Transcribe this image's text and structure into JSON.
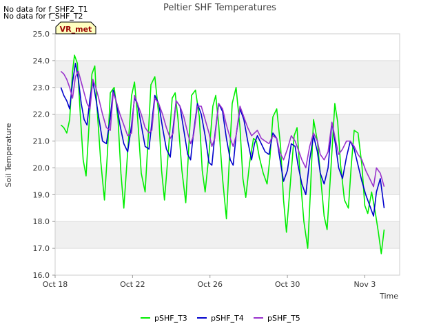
{
  "no_data_messages": [
    "No data for f_SHF2_T1",
    "No data for f_SHF_T2"
  ],
  "badge": {
    "label": "VR_met",
    "fill": "#ffffc0",
    "text_color": "#990000"
  },
  "chart_data": {
    "type": "line",
    "title": "Peltier SHF Temperatures",
    "xlabel": "Time",
    "ylabel": "Soil Temperature",
    "xlim": [
      0,
      17.8
    ],
    "ylim": [
      16.0,
      25.0
    ],
    "yticks": [
      16.0,
      17.0,
      18.0,
      19.0,
      20.0,
      21.0,
      22.0,
      23.0,
      24.0,
      25.0
    ],
    "ytick_labels": [
      "16.0",
      "17.0",
      "18.0",
      "19.0",
      "20.0",
      "21.0",
      "22.0",
      "23.0",
      "24.0",
      "25.0"
    ],
    "xticks": [
      0,
      4,
      8,
      12,
      16
    ],
    "xtick_labels": [
      "Oct 18",
      "Oct 22",
      "Oct 26",
      "Oct 30",
      "Nov 3"
    ],
    "x_unit": "days since Oct 18",
    "grid_bands": true,
    "legend_position": "bottom-center",
    "series": [
      {
        "name": "pSHF_T3",
        "color": "#00ee00",
        "x": [
          0.3,
          0.45,
          0.6,
          0.75,
          0.9,
          1.0,
          1.15,
          1.3,
          1.45,
          1.6,
          1.75,
          1.9,
          2.05,
          2.15,
          2.35,
          2.55,
          2.7,
          2.85,
          3.05,
          3.25,
          3.4,
          3.55,
          3.75,
          3.95,
          4.1,
          4.25,
          4.45,
          4.65,
          4.8,
          4.95,
          5.15,
          5.35,
          5.5,
          5.65,
          5.85,
          6.05,
          6.2,
          6.35,
          6.55,
          6.75,
          6.9,
          7.05,
          7.25,
          7.45,
          7.6,
          7.75,
          7.95,
          8.15,
          8.3,
          8.45,
          8.65,
          8.85,
          9.0,
          9.15,
          9.35,
          9.55,
          9.7,
          9.85,
          10.05,
          10.25,
          10.4,
          10.55,
          10.75,
          10.95,
          11.1,
          11.25,
          11.45,
          11.65,
          11.8,
          11.95,
          12.15,
          12.35,
          12.5,
          12.65,
          12.85,
          13.05,
          13.2,
          13.35,
          13.55,
          13.75,
          13.9,
          14.05,
          14.25,
          14.45,
          14.6,
          14.75,
          14.95,
          15.15,
          15.3,
          15.45,
          15.65,
          15.85,
          16.0,
          16.15,
          16.35,
          16.55,
          16.7,
          16.85,
          17.0
        ],
        "values": [
          21.6,
          21.5,
          21.3,
          21.8,
          23.6,
          24.2,
          23.9,
          22.0,
          20.3,
          19.7,
          21.6,
          23.5,
          23.8,
          22.4,
          20.3,
          18.8,
          20.5,
          22.8,
          23.0,
          21.8,
          19.8,
          18.5,
          20.6,
          22.7,
          23.2,
          22.0,
          19.8,
          19.1,
          21.0,
          23.1,
          23.4,
          22.0,
          19.9,
          18.8,
          20.6,
          22.6,
          22.8,
          21.8,
          19.9,
          18.7,
          20.7,
          22.7,
          22.9,
          21.9,
          19.9,
          19.1,
          20.5,
          22.3,
          22.7,
          21.6,
          19.6,
          18.1,
          20.3,
          22.4,
          23.0,
          21.5,
          19.6,
          18.9,
          20.2,
          21.1,
          21.0,
          20.4,
          19.8,
          19.4,
          20.4,
          21.9,
          22.2,
          20.8,
          18.8,
          17.6,
          19.4,
          21.2,
          21.5,
          19.8,
          18.0,
          17.0,
          19.3,
          21.8,
          21.0,
          19.4,
          18.2,
          17.7,
          20.0,
          22.4,
          21.7,
          20.1,
          18.8,
          18.5,
          20.1,
          21.4,
          21.3,
          20.1,
          18.6,
          18.3,
          19.1,
          18.3,
          17.6,
          16.8,
          17.7
        ]
      },
      {
        "name": "pSHF_T4",
        "color": "#0000cc",
        "x": [
          0.3,
          0.45,
          0.6,
          0.75,
          0.9,
          1.05,
          1.2,
          1.35,
          1.5,
          1.65,
          1.8,
          1.95,
          2.1,
          2.25,
          2.45,
          2.65,
          2.85,
          3.0,
          3.15,
          3.35,
          3.55,
          3.75,
          3.95,
          4.1,
          4.25,
          4.45,
          4.65,
          4.85,
          5.0,
          5.15,
          5.35,
          5.55,
          5.75,
          5.95,
          6.1,
          6.25,
          6.45,
          6.65,
          6.85,
          7.0,
          7.15,
          7.35,
          7.55,
          7.75,
          7.95,
          8.1,
          8.25,
          8.45,
          8.65,
          8.85,
          9.05,
          9.2,
          9.35,
          9.55,
          9.75,
          9.95,
          10.15,
          10.3,
          10.45,
          10.65,
          10.85,
          11.05,
          11.25,
          11.45,
          11.6,
          11.8,
          12.0,
          12.2,
          12.4,
          12.55,
          12.75,
          12.95,
          13.15,
          13.35,
          13.55,
          13.7,
          13.9,
          14.1,
          14.3,
          14.5,
          14.65,
          14.85,
          15.05,
          15.25,
          15.45,
          15.65,
          15.85,
          16.05,
          16.25,
          16.45,
          16.6,
          16.8,
          17.0
        ],
        "values": [
          23.0,
          22.7,
          22.5,
          22.2,
          23.2,
          23.9,
          23.3,
          22.4,
          21.8,
          21.6,
          22.6,
          23.2,
          22.6,
          21.9,
          21.0,
          20.9,
          21.9,
          22.9,
          22.5,
          21.6,
          20.9,
          20.6,
          21.6,
          22.6,
          22.4,
          21.6,
          20.8,
          20.7,
          21.7,
          22.7,
          22.4,
          21.5,
          20.7,
          20.4,
          21.5,
          22.5,
          22.3,
          21.4,
          20.5,
          20.3,
          21.3,
          22.4,
          22.0,
          21.2,
          20.2,
          20.1,
          21.2,
          22.4,
          22.1,
          21.1,
          20.3,
          20.1,
          21.2,
          22.2,
          21.8,
          21.0,
          20.3,
          20.9,
          21.2,
          20.9,
          20.6,
          20.5,
          21.3,
          21.1,
          20.4,
          19.5,
          19.9,
          20.9,
          20.8,
          20.1,
          19.4,
          19.0,
          20.3,
          21.2,
          20.6,
          19.8,
          19.4,
          20.0,
          21.7,
          20.8,
          20.0,
          19.6,
          20.4,
          21.0,
          20.7,
          20.1,
          19.5,
          19.0,
          18.6,
          18.2,
          19.1,
          19.6,
          18.5
        ]
      },
      {
        "name": "pSHF_T5",
        "color": "#9932cc",
        "x": [
          0.3,
          0.45,
          0.6,
          0.75,
          0.9,
          1.05,
          1.2,
          1.35,
          1.5,
          1.65,
          1.8,
          1.95,
          2.1,
          2.25,
          2.45,
          2.65,
          2.85,
          3.0,
          3.15,
          3.35,
          3.55,
          3.75,
          3.95,
          4.1,
          4.25,
          4.45,
          4.65,
          4.85,
          5.0,
          5.15,
          5.35,
          5.55,
          5.75,
          5.95,
          6.1,
          6.25,
          6.45,
          6.65,
          6.85,
          7.0,
          7.15,
          7.35,
          7.55,
          7.75,
          7.95,
          8.1,
          8.25,
          8.45,
          8.65,
          8.85,
          9.05,
          9.2,
          9.35,
          9.55,
          9.75,
          9.95,
          10.15,
          10.3,
          10.45,
          10.65,
          10.85,
          11.05,
          11.25,
          11.45,
          11.6,
          11.8,
          12.0,
          12.2,
          12.4,
          12.55,
          12.75,
          12.95,
          13.15,
          13.35,
          13.55,
          13.7,
          13.9,
          14.1,
          14.3,
          14.5,
          14.65,
          14.85,
          15.05,
          15.25,
          15.45,
          15.65,
          15.85,
          16.05,
          16.25,
          16.45,
          16.6,
          16.8,
          17.0
        ],
        "values": [
          23.6,
          23.5,
          23.3,
          23.0,
          22.6,
          23.4,
          23.6,
          23.2,
          22.8,
          22.4,
          22.2,
          23.3,
          23.0,
          22.6,
          22.0,
          21.5,
          21.4,
          22.8,
          22.5,
          22.0,
          21.6,
          21.2,
          21.3,
          22.7,
          22.4,
          22.0,
          21.5,
          21.3,
          21.4,
          22.6,
          22.4,
          22.0,
          21.5,
          21.1,
          21.3,
          22.5,
          22.3,
          21.9,
          21.3,
          20.9,
          21.2,
          22.3,
          22.3,
          21.8,
          21.3,
          20.8,
          21.1,
          22.4,
          22.2,
          21.6,
          21.1,
          20.8,
          21.2,
          22.3,
          21.9,
          21.5,
          21.2,
          21.3,
          21.4,
          21.1,
          21.0,
          20.9,
          21.2,
          21.1,
          20.6,
          20.3,
          20.7,
          21.2,
          21.0,
          20.7,
          20.3,
          20.0,
          20.8,
          21.3,
          21.0,
          20.5,
          20.3,
          20.6,
          21.7,
          21.0,
          20.5,
          20.7,
          21.0,
          21.0,
          20.8,
          20.5,
          20.3,
          19.9,
          19.6,
          19.3,
          20.0,
          19.8,
          19.3
        ]
      }
    ]
  }
}
